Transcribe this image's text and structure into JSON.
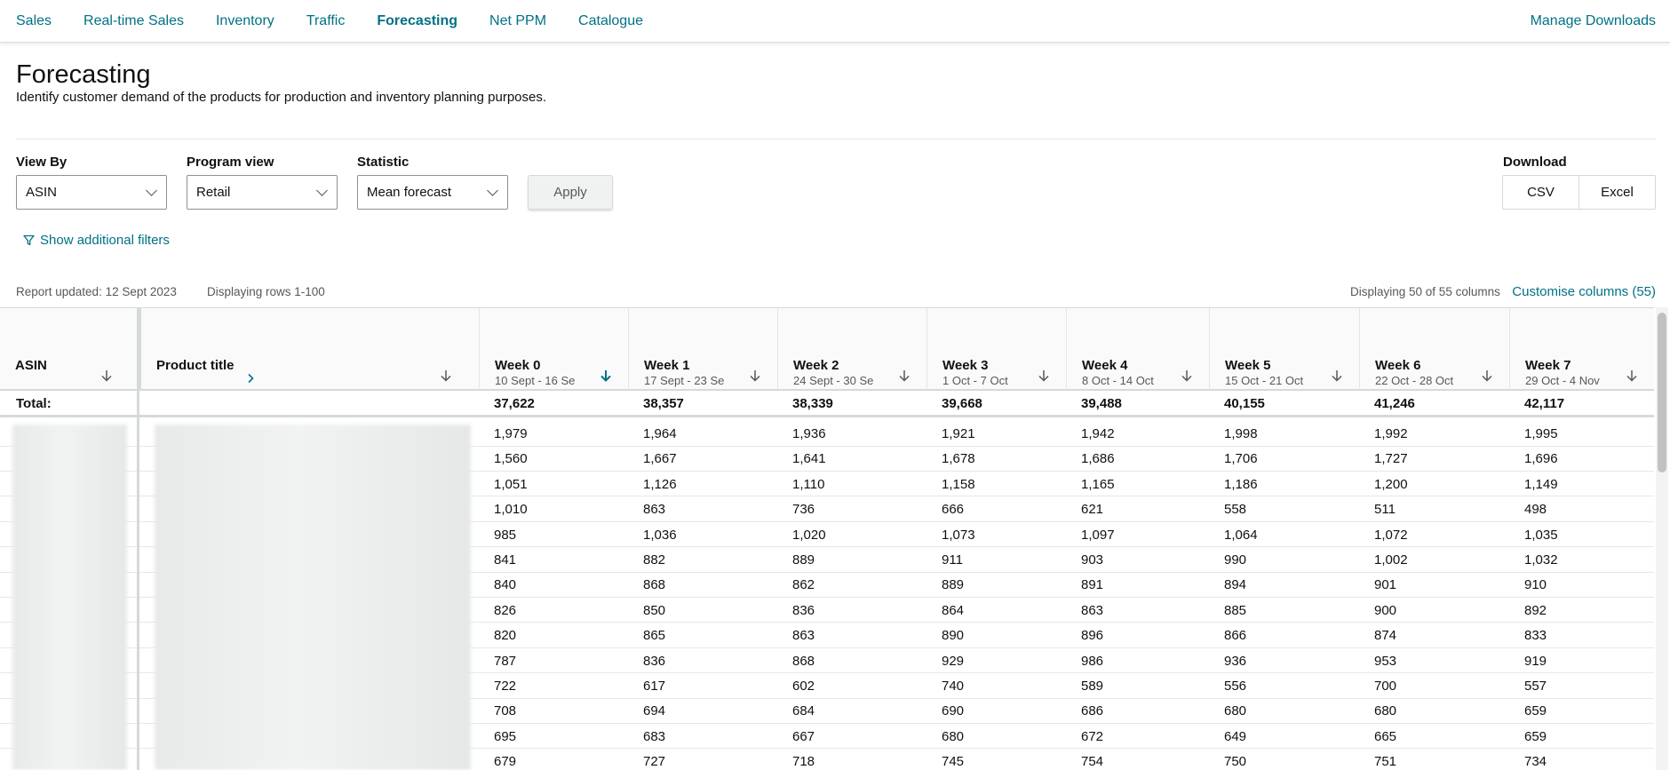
{
  "nav": {
    "tabs": [
      "Sales",
      "Real-time Sales",
      "Inventory",
      "Traffic",
      "Forecasting",
      "Net PPM",
      "Catalogue"
    ],
    "active": "Forecasting",
    "manage": "Manage Downloads"
  },
  "page": {
    "title": "Forecasting",
    "subtitle": "Identify customer demand of the products for production and inventory planning purposes."
  },
  "filters": {
    "view_by": {
      "label": "View By",
      "value": "ASIN"
    },
    "program_view": {
      "label": "Program view",
      "value": "Retail"
    },
    "statistic": {
      "label": "Statistic",
      "value": "Mean forecast"
    },
    "apply": "Apply",
    "download": {
      "label": "Download",
      "csv": "CSV",
      "excel": "Excel"
    },
    "additional": "Show additional filters"
  },
  "report": {
    "updated": "Report updated: 12 Sept 2023",
    "rows": "Displaying rows 1-100",
    "columns": "Displaying 50 of 55 columns",
    "customise": "Customise columns (55)"
  },
  "table": {
    "asin_header": "ASIN",
    "title_header": "Product title",
    "total_label": "Total:",
    "weeks": [
      {
        "label": "Week 0",
        "range": "10 Sept - 16 Se",
        "total": "37,622"
      },
      {
        "label": "Week 1",
        "range": "17 Sept - 23 Se",
        "total": "38,357"
      },
      {
        "label": "Week 2",
        "range": "24 Sept - 30 Se",
        "total": "38,339"
      },
      {
        "label": "Week 3",
        "range": "1 Oct - 7 Oct",
        "total": "39,668"
      },
      {
        "label": "Week 4",
        "range": "8 Oct - 14 Oct",
        "total": "39,488"
      },
      {
        "label": "Week 5",
        "range": "15 Oct - 21 Oct",
        "total": "40,155"
      },
      {
        "label": "Week 6",
        "range": "22 Oct - 28 Oct",
        "total": "41,246"
      },
      {
        "label": "Week 7",
        "range": "29 Oct - 4 Nov",
        "total": "42,117"
      }
    ],
    "rows": [
      [
        "1,979",
        "1,964",
        "1,936",
        "1,921",
        "1,942",
        "1,998",
        "1,992",
        "1,995"
      ],
      [
        "1,560",
        "1,667",
        "1,641",
        "1,678",
        "1,686",
        "1,706",
        "1,727",
        "1,696"
      ],
      [
        "1,051",
        "1,126",
        "1,110",
        "1,158",
        "1,165",
        "1,186",
        "1,200",
        "1,149"
      ],
      [
        "1,010",
        "863",
        "736",
        "666",
        "621",
        "558",
        "511",
        "498"
      ],
      [
        "985",
        "1,036",
        "1,020",
        "1,073",
        "1,097",
        "1,064",
        "1,072",
        "1,035"
      ],
      [
        "841",
        "882",
        "889",
        "911",
        "903",
        "990",
        "1,002",
        "1,032"
      ],
      [
        "840",
        "868",
        "862",
        "889",
        "891",
        "894",
        "901",
        "910"
      ],
      [
        "826",
        "850",
        "836",
        "864",
        "863",
        "885",
        "900",
        "892"
      ],
      [
        "820",
        "865",
        "863",
        "890",
        "896",
        "866",
        "874",
        "833"
      ],
      [
        "787",
        "836",
        "868",
        "929",
        "986",
        "936",
        "953",
        "919"
      ],
      [
        "722",
        "617",
        "602",
        "740",
        "589",
        "556",
        "700",
        "557"
      ],
      [
        "708",
        "694",
        "684",
        "690",
        "686",
        "680",
        "680",
        "659"
      ],
      [
        "695",
        "683",
        "667",
        "680",
        "672",
        "649",
        "665",
        "659"
      ],
      [
        "679",
        "727",
        "718",
        "745",
        "754",
        "750",
        "751",
        "734"
      ]
    ]
  },
  "colors": {
    "link": "#007185",
    "active_sort": "#007185"
  }
}
